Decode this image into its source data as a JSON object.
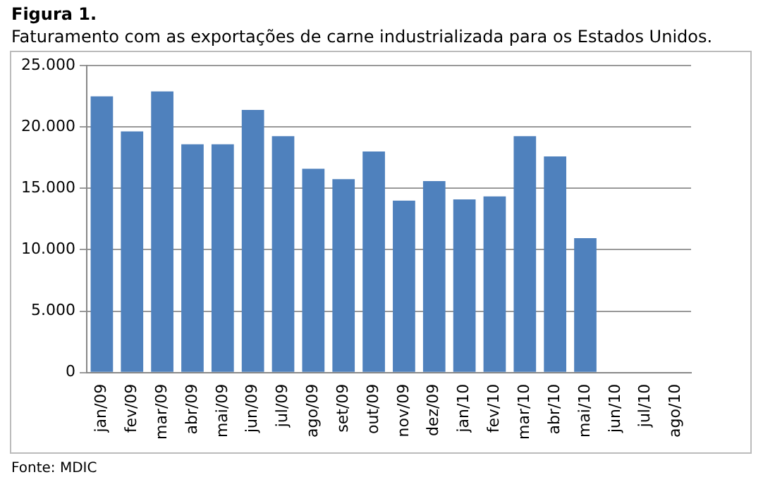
{
  "chart_data": {
    "type": "bar",
    "title": "Figura 1.",
    "subtitle": "Faturamento com as exportações de carne industrializada para os Estados Unidos.",
    "categories": [
      "jan/09",
      "fev/09",
      "mar/09",
      "abr/09",
      "mai/09",
      "jun/09",
      "jul/09",
      "ago/09",
      "set/09",
      "out/09",
      "nov/09",
      "dez/09",
      "jan/10",
      "fev/10",
      "mar/10",
      "abr/10",
      "mai/10",
      "jun/10",
      "jul/10",
      "ago/10"
    ],
    "values": [
      22500,
      19650,
      22900,
      18600,
      18600,
      21400,
      19250,
      16600,
      15750,
      18000,
      14000,
      15600,
      14100,
      14350,
      19250,
      17600,
      10950,
      null,
      null,
      null
    ],
    "color": "#4f81bd",
    "ylim": [
      0,
      25000
    ],
    "yticks": [
      {
        "value": 0,
        "label": "0"
      },
      {
        "value": 5000,
        "label": "5.000"
      },
      {
        "value": 10000,
        "label": "10.000"
      },
      {
        "value": 15000,
        "label": "15.000"
      },
      {
        "value": 20000,
        "label": "20.000"
      },
      {
        "value": 25000,
        "label": "25.000"
      }
    ],
    "grid": "y",
    "annotations": [
      "Fonte: MDIC"
    ]
  }
}
